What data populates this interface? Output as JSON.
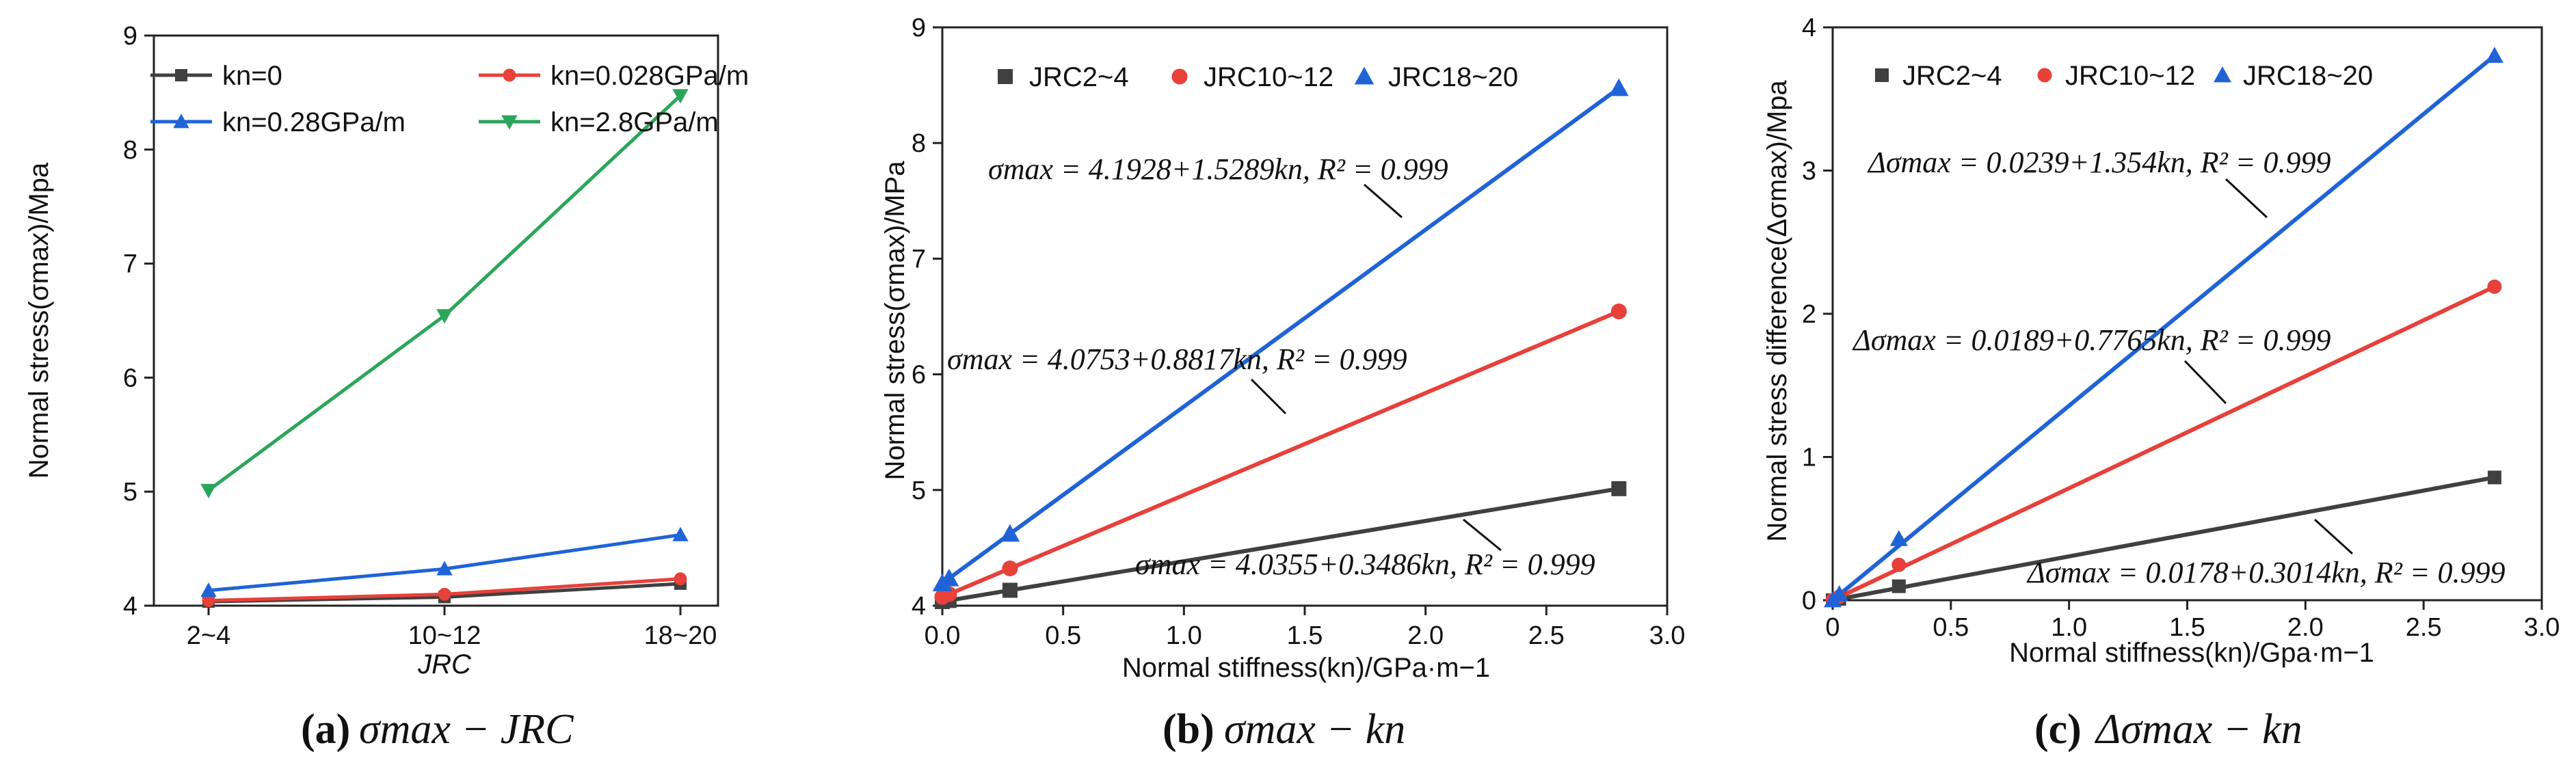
{
  "chart_data": [
    {
      "type": "line",
      "panel": "a",
      "categories": [
        "2~4",
        "10~12",
        "18~20"
      ],
      "series": [
        {
          "name": "kn=0",
          "color": "#404040",
          "marker": "square",
          "values": [
            4.0355,
            4.0753,
            4.1928
          ]
        },
        {
          "name": "kn=0.028GPa/m",
          "color": "#e8403a",
          "marker": "circle",
          "values": [
            4.045,
            4.0997,
            4.2354
          ]
        },
        {
          "name": "kn=0.28GPa/m",
          "color": "#1f63d6",
          "marker": "triangle-up",
          "values": [
            4.1331,
            4.3222,
            4.6209
          ]
        },
        {
          "name": "kn=2.8GPa/m",
          "color": "#2aa65a",
          "marker": "triangle-down",
          "values": [
            5.0116,
            6.5441,
            8.4737
          ]
        }
      ],
      "ylim": [
        4,
        9
      ],
      "yticks": [
        "4",
        "5",
        "6",
        "7",
        "8",
        "9"
      ],
      "ylabel": "Normal stress(σmax)/Mpa",
      "xlabel": "JRC",
      "legend_labels": [
        "kn=0",
        "kn=0.028GPa/m",
        "kn=0.28GPa/m",
        "kn=2.8GPa/m"
      ],
      "caption": {
        "tag": "(a)",
        "text": "σmax − JRC"
      }
    },
    {
      "type": "scatter",
      "panel": "b",
      "x": [
        0,
        0.028,
        0.28,
        2.8
      ],
      "series": [
        {
          "name": "JRC2~4",
          "color": "#404040",
          "marker": "square",
          "values": [
            4.0355,
            4.045,
            4.1331,
            5.0116
          ],
          "fit": {
            "a": 4.0355,
            "b": 0.3486
          }
        },
        {
          "name": "JRC10~12",
          "color": "#e8403a",
          "marker": "circle",
          "values": [
            4.0753,
            4.0997,
            4.3222,
            6.5441
          ],
          "fit": {
            "a": 4.0753,
            "b": 0.8817
          }
        },
        {
          "name": "JRC18~20",
          "color": "#1f63d6",
          "marker": "triangle-up",
          "values": [
            4.1928,
            4.2354,
            4.6209,
            8.4737
          ],
          "fit": {
            "a": 4.1928,
            "b": 1.5289
          }
        }
      ],
      "xlim": [
        0,
        3.0
      ],
      "ylim": [
        4,
        9
      ],
      "xticks": [
        "0.0",
        "0.5",
        "1.0",
        "1.5",
        "2.0",
        "2.5",
        "3.0"
      ],
      "yticks": [
        "4",
        "5",
        "6",
        "7",
        "8",
        "9"
      ],
      "xlabel": "Normal stiffness(kn)/GPa·m−1",
      "ylabel": "Normal stress(σmax)/MPa",
      "legend_labels": [
        "JRC2~4",
        "JRC10~12",
        "JRC18~20"
      ],
      "annotations": [
        "σmax = 4.1928+1.5289kn, R² = 0.999",
        "σmax = 4.0753+0.8817kn, R² = 0.999",
        "σmax = 4.0355+0.3486kn, R² = 0.999"
      ],
      "caption": {
        "tag": "(b)",
        "text": "σmax − kn"
      }
    },
    {
      "type": "scatter",
      "panel": "c",
      "x": [
        0,
        0.028,
        0.28,
        2.8
      ],
      "series": [
        {
          "name": "JRC2~4",
          "color": "#404040",
          "marker": "square",
          "values": [
            0,
            0.0095,
            0.0976,
            0.8571
          ],
          "fit": {
            "a": 0.0178,
            "b": 0.3014
          }
        },
        {
          "name": "JRC10~12",
          "color": "#e8403a",
          "marker": "circle",
          "values": [
            0,
            0.0244,
            0.2469,
            2.1893
          ],
          "fit": {
            "a": 0.0189,
            "b": 0.7765
          }
        },
        {
          "name": "JRC18~20",
          "color": "#1f63d6",
          "marker": "triangle-up",
          "values": [
            0,
            0.0426,
            0.4281,
            3.8022
          ],
          "fit": {
            "a": 0.0239,
            "b": 1.354
          }
        }
      ],
      "xlim": [
        0,
        3.0
      ],
      "ylim": [
        0,
        4
      ],
      "xticks": [
        "0",
        "0.5",
        "1.0",
        "1.5",
        "2.0",
        "2.5",
        "3.0"
      ],
      "yticks": [
        "0",
        "1",
        "2",
        "3",
        "4"
      ],
      "xlabel": "Normal stiffness(kn)/Gpa·m−1",
      "ylabel": "Normal stress difference(Δσmax)/Mpa",
      "legend_labels": [
        "JRC2~4",
        "JRC10~12",
        "JRC18~20"
      ],
      "annotations": [
        "Δσmax = 0.0239+1.354kn, R² = 0.999",
        "Δσmax = 0.0189+0.7765kn, R² = 0.999",
        "Δσmax = 0.0178+0.3014kn, R² = 0.999"
      ],
      "caption": {
        "tag": "(c)",
        "text": "Δσmax − kn"
      }
    }
  ]
}
